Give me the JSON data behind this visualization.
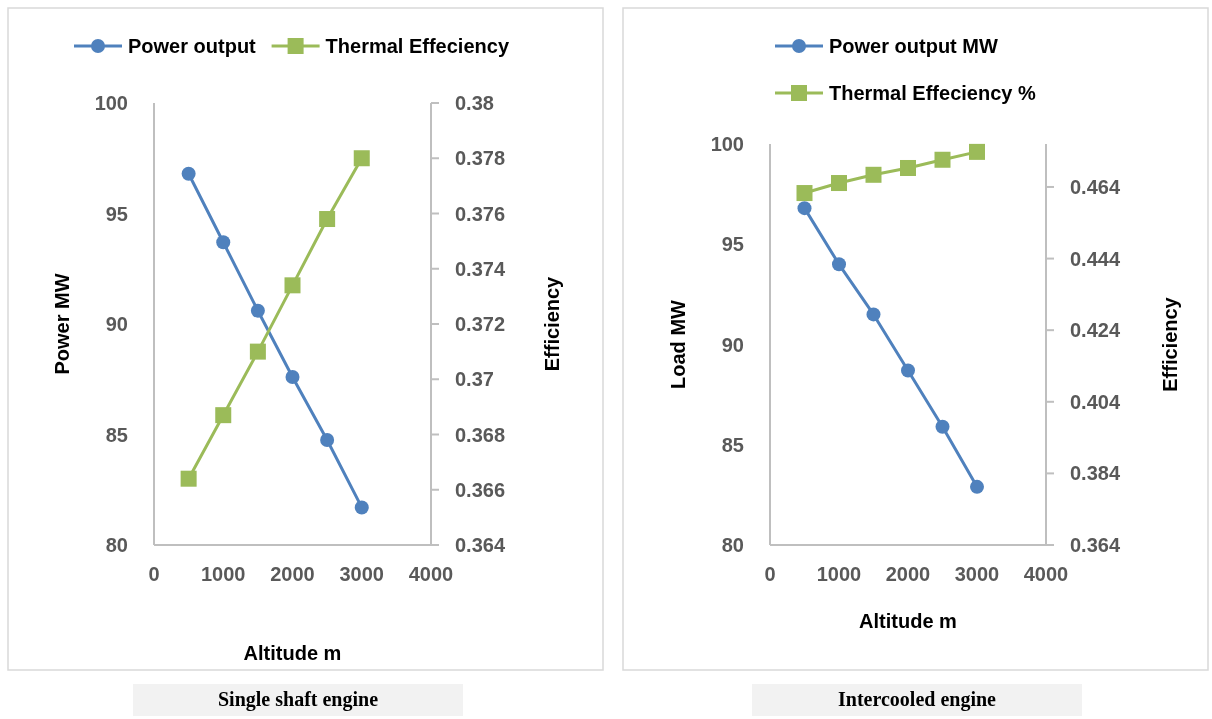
{
  "chart_data": [
    {
      "type": "line",
      "xlabel": "Altitude m",
      "ylabel": "Power MW",
      "y2label": "Efficiency",
      "x": [
        500,
        1000,
        1500,
        2000,
        2500,
        3000
      ],
      "xlim": [
        0,
        4000
      ],
      "xticks": [
        0,
        1000,
        2000,
        3000,
        4000
      ],
      "ylim": [
        80,
        100
      ],
      "yticks": [
        80,
        85,
        90,
        95,
        100
      ],
      "y2lim": [
        0.364,
        0.38
      ],
      "y2ticks": [
        0.364,
        0.366,
        0.368,
        0.37,
        0.372,
        0.374,
        0.376,
        0.378,
        0.38
      ],
      "grid": false,
      "legend": "top",
      "annotations": [
        "Single shaft engine"
      ],
      "series": [
        {
          "name": "Power output",
          "color": "#4f81bd",
          "marker": "circle",
          "values": [
            96.8,
            93.7,
            90.6,
            87.6,
            84.75,
            81.7
          ]
        },
        {
          "name": "Thermal Effeciency",
          "color": "#9bbb59",
          "marker": "square",
          "axis": "y2",
          "values": [
            0.3664,
            0.3687,
            0.371,
            0.3734,
            0.3758,
            0.378
          ]
        }
      ]
    },
    {
      "type": "line",
      "xlabel": "Altitude m",
      "ylabel": "Load MW",
      "y2label": "Efficiency",
      "x": [
        500,
        1000,
        1500,
        2000,
        2500,
        3000
      ],
      "xlim": [
        0,
        4000
      ],
      "xticks": [
        0,
        1000,
        2000,
        3000,
        4000
      ],
      "ylim": [
        80,
        100
      ],
      "yticks": [
        80,
        85,
        90,
        95,
        100
      ],
      "y2lim": [
        0.364,
        0.476
      ],
      "y2ticks": [
        0.364,
        0.384,
        0.404,
        0.424,
        0.444,
        0.464
      ],
      "grid": false,
      "legend": "top",
      "annotations": [
        "Intercooled engine"
      ],
      "series": [
        {
          "name": "Power output MW",
          "color": "#4f81bd",
          "marker": "circle",
          "values": [
            96.8,
            94.0,
            91.5,
            88.7,
            85.9,
            82.9
          ]
        },
        {
          "name": "Thermal Effeciency %",
          "color": "#9bbb59",
          "marker": "square",
          "axis": "y2",
          "values": [
            0.4623,
            0.4651,
            0.4674,
            0.4693,
            0.4716,
            0.4738
          ]
        }
      ]
    }
  ]
}
